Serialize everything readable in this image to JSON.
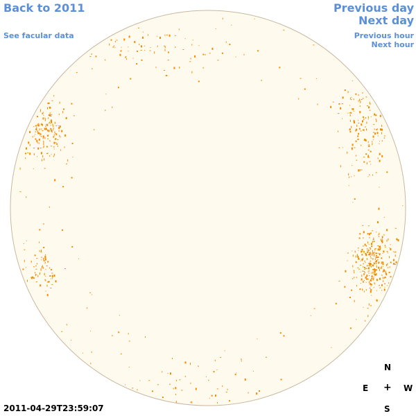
{
  "nav": {
    "back_label": "Back to 2011",
    "facular_label": "See facular data",
    "prev_day_label": "Previous day",
    "next_day_label": "Next day",
    "prev_hour_label": "Previous hour",
    "next_hour_label": "Next hour"
  },
  "timestamp": "2011-04-29T23:59:07",
  "compass": {
    "north": "N",
    "east": "E",
    "center": "+",
    "west": "W",
    "south": "S"
  },
  "colors": {
    "link": "#5b8fd8",
    "disk_fill": "#fffaee",
    "disk_edge": "#c8b8a0",
    "facula": "#f08c00"
  },
  "disk": {
    "regions": [
      {
        "label": "north-east-limb",
        "density": "medium"
      },
      {
        "label": "west-limb-upper",
        "density": "high"
      },
      {
        "label": "west-limb-lower",
        "density": "very-high"
      },
      {
        "label": "east-limb-upper",
        "density": "high"
      },
      {
        "label": "east-limb-lower",
        "density": "medium"
      },
      {
        "label": "south-limb",
        "density": "low"
      }
    ]
  }
}
